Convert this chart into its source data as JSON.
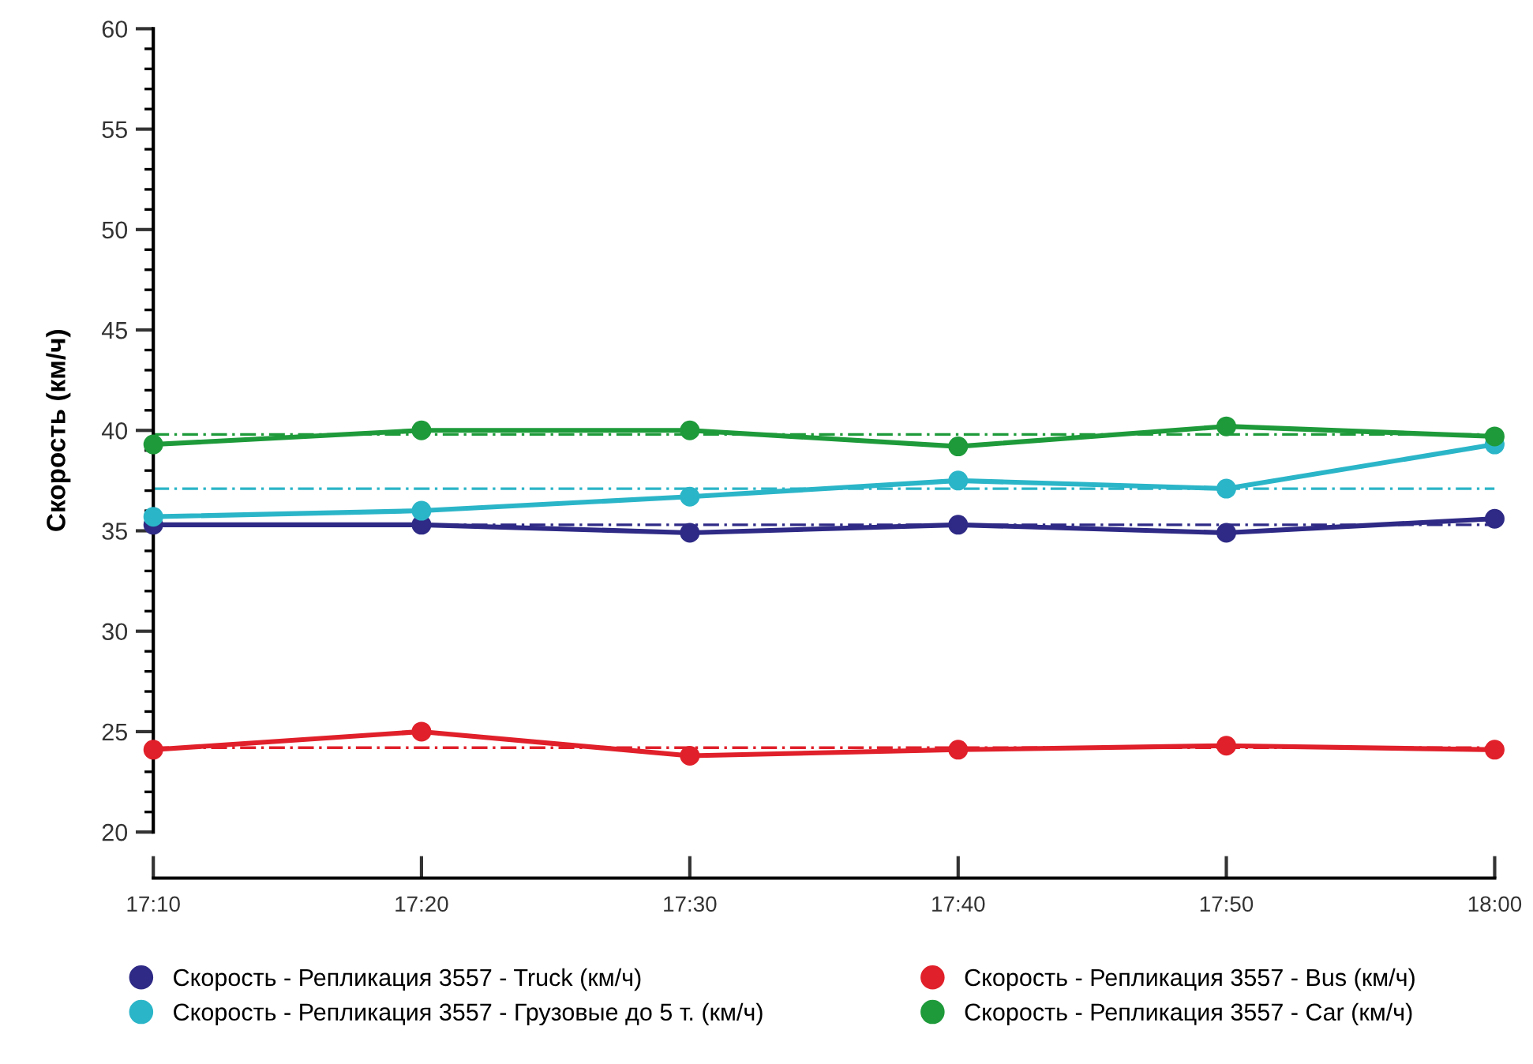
{
  "chart_data": {
    "type": "line",
    "ylabel": "Скорость (км/ч)",
    "x": [
      17.1667,
      17.3333,
      17.5,
      17.6667,
      17.8333,
      18.0
    ],
    "xlim": [
      17.1667,
      18.0
    ],
    "xticks": [
      {
        "value": 17.1667,
        "label": "17:10"
      },
      {
        "value": 17.3333,
        "label": "17:20"
      },
      {
        "value": 17.5,
        "label": "17:30"
      },
      {
        "value": 17.6667,
        "label": "17:40"
      },
      {
        "value": 17.8333,
        "label": "17:50"
      },
      {
        "value": 18.0,
        "label": "18:00"
      }
    ],
    "ylim": [
      20,
      60
    ],
    "yticks": [
      20,
      25,
      30,
      35,
      40,
      45,
      50,
      55,
      60
    ],
    "series": [
      {
        "name": "Скорость - Репликация 3557 - Truck (км/ч)",
        "color": "#2e2a85",
        "values": [
          35.3,
          35.3,
          34.9,
          35.3,
          34.9,
          35.6
        ]
      },
      {
        "name": "Скорость - Репликация 3557 - Грузовые до 5 т. (км/ч)",
        "color": "#2bb5c8",
        "values": [
          35.7,
          36.0,
          36.7,
          37.5,
          37.1,
          39.3
        ]
      },
      {
        "name": "Скорость - Репликация 3557 - Bus (км/ч)",
        "color": "#e0202a",
        "values": [
          24.1,
          25.0,
          23.8,
          24.1,
          24.3,
          24.1
        ]
      },
      {
        "name": "Скорость - Репликация 3557 - Car (км/ч)",
        "color": "#1e9a3a",
        "values": [
          39.3,
          40.0,
          40.0,
          39.2,
          40.2,
          39.7
        ]
      }
    ],
    "ref_lines": [
      {
        "axis": "y",
        "value": 35.3,
        "color": "#2e2a85",
        "line_style": "dashed"
      },
      {
        "axis": "y",
        "value": 37.1,
        "color": "#2bb5c8",
        "line_style": "dashed"
      },
      {
        "axis": "y",
        "value": 24.2,
        "color": "#e0202a",
        "line_style": "dashed"
      },
      {
        "axis": "y",
        "value": 39.8,
        "color": "#1e9a3a",
        "line_style": "dashed"
      }
    ],
    "marker": "circle",
    "line_style": "solid",
    "grid": false,
    "legend": "bottom"
  }
}
